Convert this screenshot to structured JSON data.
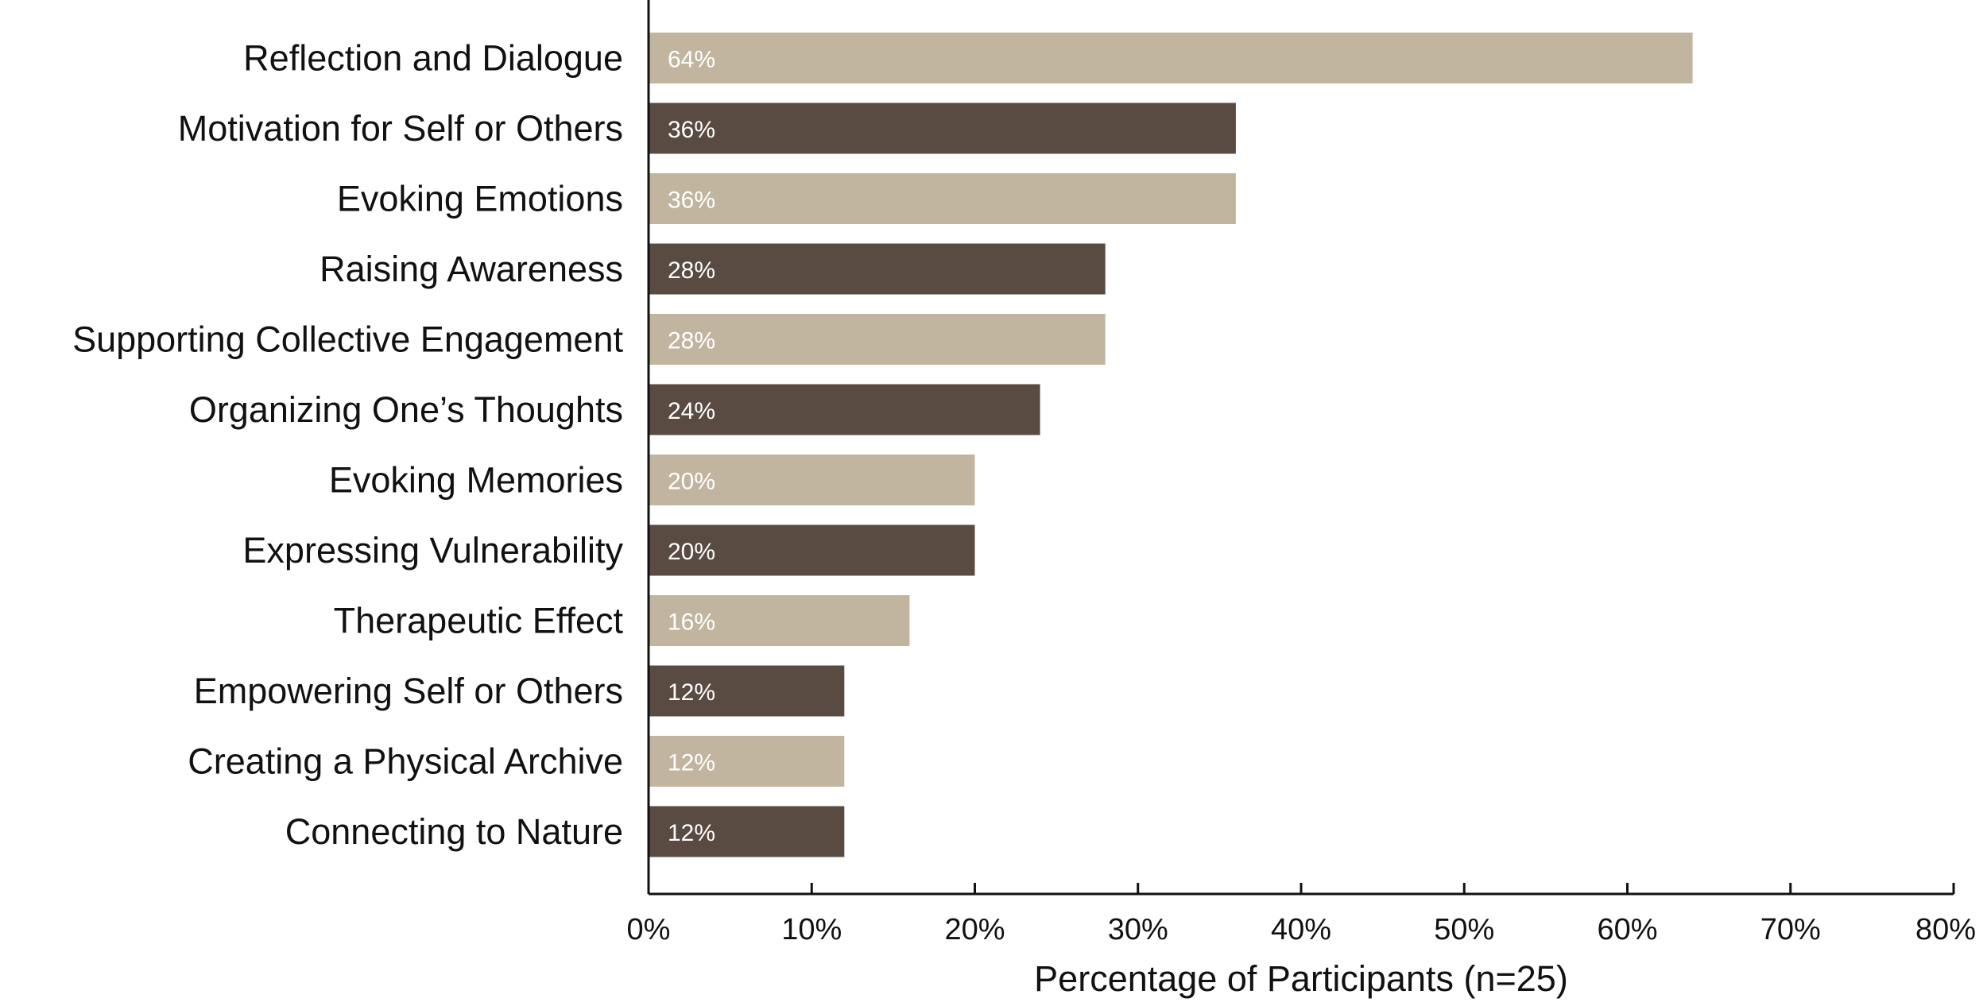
{
  "chart_data": {
    "type": "bar",
    "orientation": "horizontal",
    "categories": [
      "Reflection and Dialogue",
      "Motivation for Self or Others",
      "Evoking Emotions",
      "Raising Awareness",
      "Supporting Collective Engagement",
      "Organizing One’s Thoughts",
      "Evoking Memories",
      "Expressing Vulnerability",
      "Therapeutic Effect",
      "Empowering Self or Others",
      "Creating a Physical Archive",
      "Connecting to Nature"
    ],
    "values": [
      64,
      36,
      36,
      28,
      28,
      24,
      20,
      20,
      16,
      12,
      12,
      12
    ],
    "data_labels": [
      "64%",
      "36%",
      "36%",
      "28%",
      "28%",
      "24%",
      "20%",
      "20%",
      "16%",
      "12%",
      "12%",
      "12%"
    ],
    "xlabel": "Percentage of Participants (n=25)",
    "ylabel": "",
    "xlim": [
      0,
      80
    ],
    "xticks": [
      0,
      10,
      20,
      30,
      40,
      50,
      60,
      70,
      80
    ],
    "xtick_labels": [
      "0%",
      "10%",
      "20%",
      "30%",
      "40%",
      "50%",
      "60%",
      "70%",
      "80%"
    ],
    "grid": false,
    "bar_colors": [
      "#C1B59F",
      "#594B42"
    ],
    "color_pattern": "alternating, starting with light"
  }
}
